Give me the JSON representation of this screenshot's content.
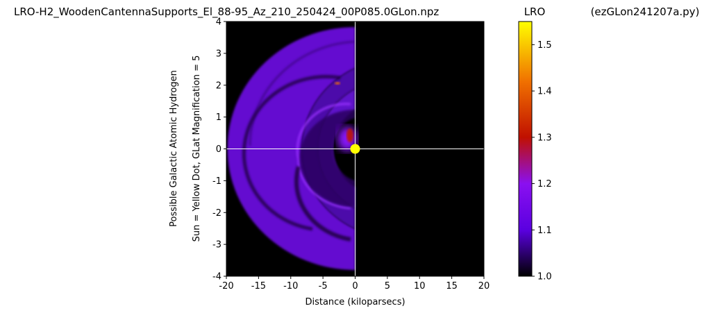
{
  "header": {
    "title": "LRO-H2_WoodenCantennaSupports_El_88-95_Az_210_250424_00P085.0GLon.npz",
    "colorbar_title": "LRO",
    "script_name": "(ezGLon241207a.py)"
  },
  "chart_data": {
    "type": "heatmap",
    "xlabel": "Distance (kiloparsecs)",
    "ylabel": "Possible Galactic Atomic Hydrogen",
    "ylabel2": "Sun = Yellow Dot, GLat Magnification = 5",
    "xlim": [
      -20,
      20
    ],
    "ylim": [
      -4,
      4
    ],
    "x_ticks": [
      -20,
      -15,
      -10,
      -5,
      0,
      5,
      10,
      15,
      20
    ],
    "y_ticks": [
      -4,
      -3,
      -2,
      -1,
      0,
      1,
      2,
      3,
      4
    ],
    "x_tick_labels": [
      "-20",
      "-15",
      "-10",
      "-5",
      "0",
      "5",
      "10",
      "15",
      "20"
    ],
    "y_tick_labels": [
      "-4",
      "-3",
      "-2",
      "-1",
      "0",
      "1",
      "2",
      "3",
      "4"
    ],
    "sun_position": [
      0,
      0
    ],
    "sun_color": "#ffff00",
    "colorbar": {
      "min": 1.0,
      "max": 1.55,
      "ticks": [
        1.0,
        1.1,
        1.2,
        1.3,
        1.4,
        1.5
      ],
      "tick_labels": [
        "1.0",
        "1.1",
        "1.2",
        "1.3",
        "1.4",
        "1.5"
      ],
      "colormap": "gnuplot",
      "stops": [
        {
          "value": 1.0,
          "color": "#000000"
        },
        {
          "value": 1.1,
          "color": "#5a00e0"
        },
        {
          "value": 1.2,
          "color": "#8a10f0"
        },
        {
          "value": 1.3,
          "color": "#c01000"
        },
        {
          "value": 1.42,
          "color": "#f07000"
        },
        {
          "value": 1.55,
          "color": "#ffff00"
        }
      ]
    },
    "grid": false
  }
}
